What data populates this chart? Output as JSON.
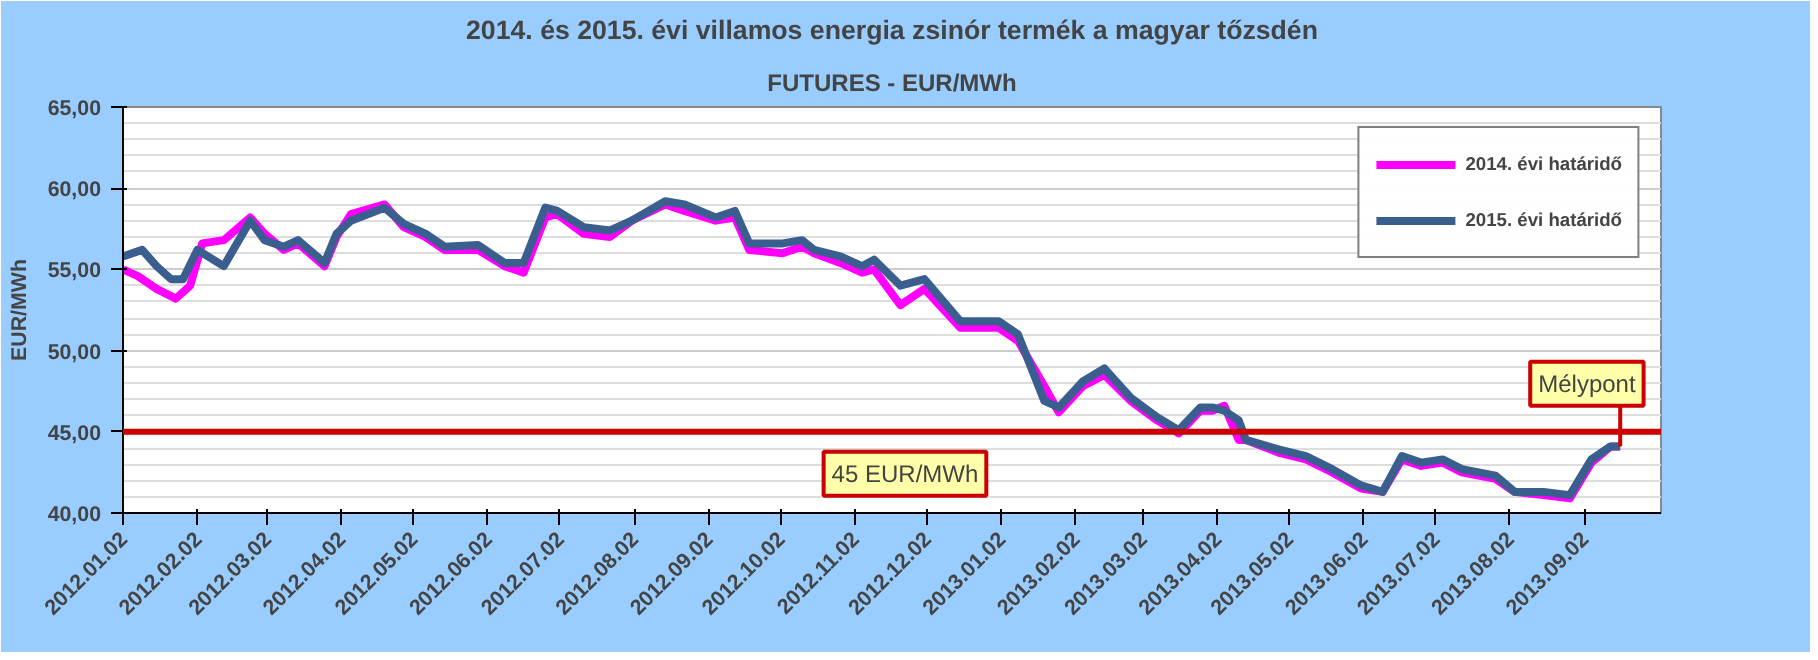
{
  "chart_data": {
    "type": "line",
    "title": "2014. és 2015. évi villamos energia zsinór termék a magyar tőzsdén",
    "subtitle": "FUTURES - EUR/MWh",
    "ylabel": "EUR/MWh",
    "series": [
      {
        "name": "2014. évi határidő",
        "color": "#ff00ff",
        "x": [
          "2012-01-02",
          "2012-01-08",
          "2012-01-16",
          "2012-01-24",
          "2012-01-30",
          "2012-02-04",
          "2012-02-13",
          "2012-02-24",
          "2012-03-01",
          "2012-03-09",
          "2012-03-15",
          "2012-03-26",
          "2012-03-31",
          "2012-04-06",
          "2012-04-20",
          "2012-04-28",
          "2012-05-07",
          "2012-05-15",
          "2012-05-29",
          "2012-06-09",
          "2012-06-17",
          "2012-06-26",
          "2012-07-01",
          "2012-07-12",
          "2012-07-23",
          "2012-08-01",
          "2012-08-15",
          "2012-08-23",
          "2012-09-05",
          "2012-09-13",
          "2012-09-19",
          "2012-10-03",
          "2012-10-11",
          "2012-10-16",
          "2012-10-27",
          "2012-11-05",
          "2012-11-10",
          "2012-11-21",
          "2012-12-01",
          "2012-12-16",
          "2013-01-01",
          "2013-01-09",
          "2013-01-20",
          "2013-01-26",
          "2013-02-05",
          "2013-02-14",
          "2013-02-25",
          "2013-03-08",
          "2013-03-17",
          "2013-03-26",
          "2013-03-31",
          "2013-04-05",
          "2013-04-11",
          "2013-04-14",
          "2013-04-28",
          "2013-05-09",
          "2013-05-20",
          "2013-06-01",
          "2013-06-10",
          "2013-06-18",
          "2013-06-26",
          "2013-07-05",
          "2013-07-13",
          "2013-07-27",
          "2013-08-04",
          "2013-08-16",
          "2013-08-27",
          "2013-09-05",
          "2013-09-13",
          "2013-09-17"
        ],
        "values": [
          55.0,
          54.6,
          53.8,
          53.2,
          54.0,
          56.6,
          56.8,
          58.2,
          57.2,
          56.2,
          56.6,
          55.2,
          57.0,
          58.4,
          59.0,
          57.6,
          57.0,
          56.2,
          56.2,
          55.2,
          54.8,
          58.2,
          58.4,
          57.2,
          57.0,
          58.0,
          59.0,
          58.6,
          58.0,
          58.2,
          56.2,
          56.0,
          56.4,
          56.0,
          55.4,
          54.8,
          55.0,
          52.8,
          53.8,
          51.4,
          51.4,
          50.6,
          47.8,
          46.2,
          47.8,
          48.5,
          46.9,
          45.7,
          44.9,
          46.3,
          46.3,
          46.6,
          44.5,
          44.5,
          43.7,
          43.3,
          42.5,
          41.5,
          41.3,
          43.3,
          42.9,
          43.1,
          42.5,
          42.1,
          41.3,
          41.1,
          40.9,
          43.1,
          44.1,
          44.1
        ]
      },
      {
        "name": "2015. évi határidő",
        "color": "#3a5f8f",
        "x": [
          "2012-01-02",
          "2012-01-10",
          "2012-01-16",
          "2012-01-22",
          "2012-01-27",
          "2012-02-02",
          "2012-02-13",
          "2012-02-24",
          "2012-03-01",
          "2012-03-09",
          "2012-03-15",
          "2012-03-26",
          "2012-03-31",
          "2012-04-06",
          "2012-04-20",
          "2012-04-28",
          "2012-05-07",
          "2012-05-15",
          "2012-05-29",
          "2012-06-09",
          "2012-06-17",
          "2012-06-26",
          "2012-07-01",
          "2012-07-12",
          "2012-07-23",
          "2012-08-01",
          "2012-08-15",
          "2012-08-23",
          "2012-09-05",
          "2012-09-13",
          "2012-09-19",
          "2012-10-03",
          "2012-10-11",
          "2012-10-16",
          "2012-10-27",
          "2012-11-05",
          "2012-11-10",
          "2012-11-21",
          "2012-12-01",
          "2012-12-16",
          "2013-01-01",
          "2013-01-09",
          "2013-01-20",
          "2013-01-26",
          "2013-02-05",
          "2013-02-14",
          "2013-02-25",
          "2013-03-08",
          "2013-03-17",
          "2013-03-26",
          "2013-03-31",
          "2013-04-05",
          "2013-04-11",
          "2013-04-14",
          "2013-04-28",
          "2013-05-09",
          "2013-05-20",
          "2013-06-01",
          "2013-06-10",
          "2013-06-18",
          "2013-06-26",
          "2013-07-05",
          "2013-07-13",
          "2013-07-27",
          "2013-08-04",
          "2013-08-16",
          "2013-08-27",
          "2013-09-05",
          "2013-09-13",
          "2013-09-17"
        ],
        "values": [
          55.8,
          56.2,
          55.2,
          54.4,
          54.4,
          56.2,
          55.2,
          58.0,
          56.8,
          56.4,
          56.8,
          55.4,
          57.2,
          58.0,
          58.8,
          57.8,
          57.2,
          56.4,
          56.5,
          55.4,
          55.4,
          58.8,
          58.6,
          57.6,
          57.4,
          58.0,
          59.2,
          59.0,
          58.2,
          58.6,
          56.6,
          56.6,
          56.8,
          56.2,
          55.8,
          55.2,
          55.6,
          54.0,
          54.4,
          51.8,
          51.8,
          51.0,
          46.9,
          46.5,
          48.1,
          48.9,
          47.1,
          45.9,
          45.1,
          46.5,
          46.5,
          46.3,
          45.7,
          44.5,
          43.9,
          43.5,
          42.7,
          41.7,
          41.3,
          43.5,
          43.1,
          43.3,
          42.7,
          42.3,
          41.3,
          41.3,
          41.1,
          43.3,
          44.1,
          44.1
        ]
      }
    ],
    "xlim": [
      "2012-01-02",
      "2013-10-04"
    ],
    "xticks": [
      {
        "value": "2012-01-02",
        "label": "2012.01.02"
      },
      {
        "value": "2012-02-02",
        "label": "2012.02.02"
      },
      {
        "value": "2012-03-02",
        "label": "2012.03.02"
      },
      {
        "value": "2012-04-02",
        "label": "2012.04.02"
      },
      {
        "value": "2012-05-02",
        "label": "2012.05.02"
      },
      {
        "value": "2012-06-02",
        "label": "2012.06.02"
      },
      {
        "value": "2012-07-02",
        "label": "2012.07.02"
      },
      {
        "value": "2012-08-02",
        "label": "2012.08.02"
      },
      {
        "value": "2012-09-02",
        "label": "2012.09.02"
      },
      {
        "value": "2012-10-02",
        "label": "2012.10.02"
      },
      {
        "value": "2012-11-02",
        "label": "2012.11.02"
      },
      {
        "value": "2012-12-02",
        "label": "2012.12.02"
      },
      {
        "value": "2013-01-02",
        "label": "2013.01.02"
      },
      {
        "value": "2013-02-02",
        "label": "2013.02.02"
      },
      {
        "value": "2013-03-02",
        "label": "2013.03.02"
      },
      {
        "value": "2013-04-02",
        "label": "2013.04.02"
      },
      {
        "value": "2013-05-02",
        "label": "2013.05.02"
      },
      {
        "value": "2013-06-02",
        "label": "2013.06.02"
      },
      {
        "value": "2013-07-02",
        "label": "2013.07.02"
      },
      {
        "value": "2013-08-02",
        "label": "2013.08.02"
      },
      {
        "value": "2013-09-02",
        "label": "2013.09.02"
      }
    ],
    "ylim": [
      40,
      65
    ],
    "yticks": [
      {
        "value": 40,
        "label": "40,00"
      },
      {
        "value": 45,
        "label": "45,00"
      },
      {
        "value": 50,
        "label": "50,00"
      },
      {
        "value": 55,
        "label": "55,00"
      },
      {
        "value": 60,
        "label": "60,00"
      },
      {
        "value": 65,
        "label": "65,00"
      }
    ],
    "ref_lines": [
      {
        "axis": "y",
        "value": 45,
        "label": "45 EUR/MWh",
        "color": "#cc0000"
      }
    ],
    "annotations": [
      {
        "text": "Mélypont",
        "x": "2013-09-17",
        "y": 44.1
      }
    ],
    "grid": "y",
    "legend": "top right",
    "line_style": "solid"
  }
}
